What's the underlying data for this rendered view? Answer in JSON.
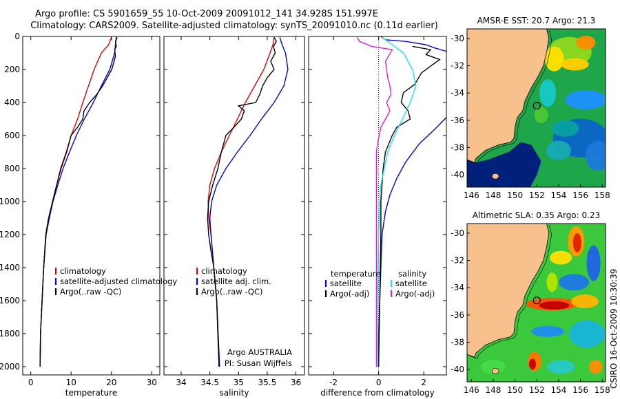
{
  "header": {
    "line1": "Argo profile: CS 5901659_55 10-Oct-2009 20091012_141 34.928S 151.997E",
    "line2": "Climatology: CARS2009. Satellite-adjusted climatology: synTS_20091010.nc (0.11d earlier)"
  },
  "credit": "CSIRO 16-Oct-2009 10:30:39",
  "colors": {
    "red": "#e00000",
    "blue": "#0000e0",
    "black": "#000000",
    "cyan": "#19e6e6",
    "magenta": "#e619e6",
    "land": "#f7c08c",
    "ocean_deep": "#00207a"
  },
  "chart_data": [
    {
      "id": "temperature",
      "type": "line",
      "xlabel": "temperature",
      "ylabel": "",
      "xlim": [
        -2,
        32
      ],
      "ylim": [
        2050,
        0
      ],
      "xticks": [
        0,
        10,
        20,
        30
      ],
      "yticks": [
        0,
        200,
        400,
        600,
        800,
        1000,
        1200,
        1400,
        1600,
        1800,
        2000
      ],
      "legend": {
        "placement": "lower-right",
        "entries": [
          "climatology",
          "satellite-adjusted climatology",
          "Argo(..raw -QC)"
        ]
      },
      "series": [
        {
          "name": "climatology",
          "color": "red",
          "x": [
            20.0,
            19.3,
            17.5,
            15.7,
            14.3,
            12.9,
            11.6,
            10.0,
            8.8,
            7.4,
            6.4,
            5.4,
            4.6,
            3.8,
            3.2,
            2.8,
            2.4,
            2.3
          ],
          "y": [
            5,
            50,
            100,
            200,
            300,
            400,
            500,
            600,
            700,
            800,
            900,
            1000,
            1100,
            1200,
            1400,
            1600,
            1800,
            2000
          ]
        },
        {
          "name": "satellite-adjusted climatology",
          "color": "blue",
          "x": [
            21.2,
            21.0,
            20.8,
            19.6,
            17.5,
            15.5,
            13.3,
            11.3,
            9.6,
            8.0,
            6.7,
            5.5,
            4.6,
            3.8,
            3.2,
            2.8,
            2.4,
            2.3
          ],
          "y": [
            5,
            50,
            100,
            200,
            300,
            400,
            500,
            600,
            700,
            800,
            900,
            1000,
            1100,
            1200,
            1400,
            1600,
            1800,
            2000
          ]
        },
        {
          "name": "Argo(..raw -QC)",
          "color": "black",
          "x": [
            21.4,
            21.0,
            21.2,
            20.8,
            21.0,
            20.1,
            17.8,
            16.4,
            14.6,
            13.2,
            12.9,
            11.6,
            10.0,
            8.9,
            7.5,
            6.4,
            5.4,
            4.4,
            3.7,
            3.2,
            2.8,
            2.4,
            2.3
          ],
          "y": [
            5,
            30,
            60,
            80,
            120,
            200,
            300,
            350,
            400,
            450,
            500,
            550,
            600,
            700,
            800,
            900,
            1000,
            1100,
            1200,
            1400,
            1600,
            1800,
            2000
          ]
        }
      ]
    },
    {
      "id": "salinity",
      "type": "line",
      "xlabel": "salinity",
      "ylabel": "",
      "xlim": [
        33.7,
        36.15
      ],
      "ylim": [
        2050,
        0
      ],
      "xticks": [
        34,
        34.5,
        35,
        35.5,
        36
      ],
      "yticks": [],
      "legend": {
        "placement": "lower-right",
        "entries": [
          "climatology",
          "satellite adj. clim.",
          "Argo(..raw -QC)"
        ]
      },
      "annotation": [
        "Argo AUSTRALIA",
        "PI: Susan Wijffels"
      ],
      "series": [
        {
          "name": "climatology",
          "color": "red",
          "x": [
            35.62,
            35.6,
            35.55,
            35.44,
            35.28,
            35.12,
            34.98,
            34.84,
            34.7,
            34.58,
            34.5,
            34.47,
            34.48,
            34.52,
            34.57,
            34.62,
            34.66
          ],
          "y": [
            5,
            50,
            100,
            200,
            300,
            400,
            500,
            600,
            700,
            800,
            900,
            1000,
            1100,
            1200,
            1400,
            1600,
            2000
          ]
        },
        {
          "name": "satellite adj. clim.",
          "color": "blue",
          "x": [
            35.72,
            35.76,
            35.82,
            35.86,
            35.79,
            35.62,
            35.4,
            35.2,
            34.98,
            34.78,
            34.62,
            34.53,
            34.5,
            34.52,
            34.57,
            34.62,
            34.67
          ],
          "y": [
            5,
            50,
            100,
            200,
            300,
            400,
            500,
            600,
            700,
            800,
            900,
            1000,
            1100,
            1200,
            1400,
            1600,
            2000
          ]
        },
        {
          "name": "Argo(..raw -QC)",
          "color": "black",
          "x": [
            35.62,
            35.66,
            35.61,
            35.64,
            35.56,
            35.62,
            35.5,
            35.42,
            35.37,
            35.3,
            35.0,
            35.1,
            35.05,
            34.92,
            34.78,
            34.7,
            34.64,
            34.55,
            34.48,
            34.47,
            34.46,
            34.48,
            34.52,
            34.57,
            34.62,
            34.66
          ],
          "y": [
            5,
            30,
            60,
            100,
            150,
            200,
            250,
            300,
            350,
            400,
            420,
            450,
            500,
            550,
            600,
            700,
            800,
            900,
            1000,
            1050,
            1100,
            1200,
            1300,
            1400,
            1600,
            2000
          ]
        }
      ]
    },
    {
      "id": "difference",
      "type": "line",
      "xlabel": "difference from climatology",
      "ylabel": "",
      "xlim": [
        -3.1,
        3.0
      ],
      "ylim": [
        2050,
        0
      ],
      "xticks": [
        -2,
        0,
        2
      ],
      "yticks": [],
      "legend": {
        "placement": "lower-center",
        "groups": [
          {
            "title": "temperature",
            "entries": [
              "satellite",
              "Argo(-adj)"
            ]
          },
          {
            "title": "salinity",
            "entries": [
              "satellite",
              "Argo(-adj)"
            ]
          }
        ]
      },
      "series": [
        {
          "name": "temperature satellite",
          "color": "blue",
          "x": [
            0.1,
            0.3,
            1.2,
            2.1,
            2.5,
            3.0
          ],
          "y": [
            0,
            20,
            30,
            50,
            70,
            90
          ]
        },
        {
          "name": "temperature satellite",
          "color": "blue",
          "x": [
            3.0,
            2.5,
            1.8,
            1.2,
            0.8,
            0.5,
            0.3,
            0.15,
            0.1,
            0.05,
            0.0,
            0.0
          ],
          "y": [
            490,
            560,
            650,
            760,
            860,
            960,
            1060,
            1200,
            1400,
            1600,
            1800,
            2000
          ]
        },
        {
          "name": "Argo(-adj)",
          "color": "black",
          "x": [
            1.5,
            2.3,
            2.1,
            2.7,
            2.4,
            1.9,
            1.6,
            1.1,
            1.0,
            1.3,
            1.4,
            0.8,
            0.6,
            0.3,
            0.2,
            0.1,
            0.1,
            0.05,
            0.0
          ],
          "y": [
            60,
            80,
            110,
            140,
            170,
            220,
            290,
            340,
            400,
            450,
            500,
            550,
            600,
            700,
            800,
            1000,
            1200,
            1600,
            2000
          ]
        },
        {
          "name": "salinity satellite",
          "color": "cyan",
          "x": [
            0.15,
            0.4,
            0.7,
            1.1,
            1.5,
            1.65,
            1.4,
            1.05,
            0.7,
            0.4,
            0.25,
            0.1,
            0.05,
            0.0,
            -0.05,
            -0.05
          ],
          "y": [
            5,
            30,
            60,
            100,
            200,
            300,
            400,
            500,
            600,
            700,
            800,
            900,
            1000,
            1200,
            1600,
            2000
          ]
        },
        {
          "name": "salinity Argo(-adj)",
          "color": "magenta",
          "x": [
            -0.95,
            -0.85,
            -0.3,
            0.6,
            0.3,
            0.4,
            0.5,
            0.55,
            0.35,
            0.5,
            0.3,
            0.1,
            -0.05,
            -0.1,
            -0.1,
            -0.1,
            -0.1,
            -0.1
          ],
          "y": [
            5,
            30,
            60,
            80,
            150,
            250,
            300,
            350,
            400,
            450,
            500,
            550,
            650,
            700,
            800,
            1000,
            1400,
            2000
          ]
        }
      ]
    }
  ],
  "maps": [
    {
      "id": "sst",
      "title": "AMSR-E SST: 20.7 Argo: 21.3",
      "xticks": [
        146,
        148,
        150,
        152,
        154,
        156,
        158
      ],
      "yticks": [
        -30,
        -32,
        -34,
        -36,
        -38,
        -40
      ],
      "xlim": [
        145.6,
        158.3
      ],
      "ylim": [
        -40.9,
        -29.3
      ],
      "marker": [
        152.0,
        -34.93
      ]
    },
    {
      "id": "sla",
      "title": "Altimetric SLA: 0.35 Argo: 0.23",
      "xticks": [
        146,
        148,
        150,
        152,
        154,
        156,
        158
      ],
      "yticks": [
        -30,
        -32,
        -34,
        -36,
        -38,
        -40
      ],
      "xlim": [
        145.6,
        158.3
      ],
      "ylim": [
        -40.9,
        -29.3
      ],
      "marker": [
        152.0,
        -34.93
      ]
    }
  ]
}
